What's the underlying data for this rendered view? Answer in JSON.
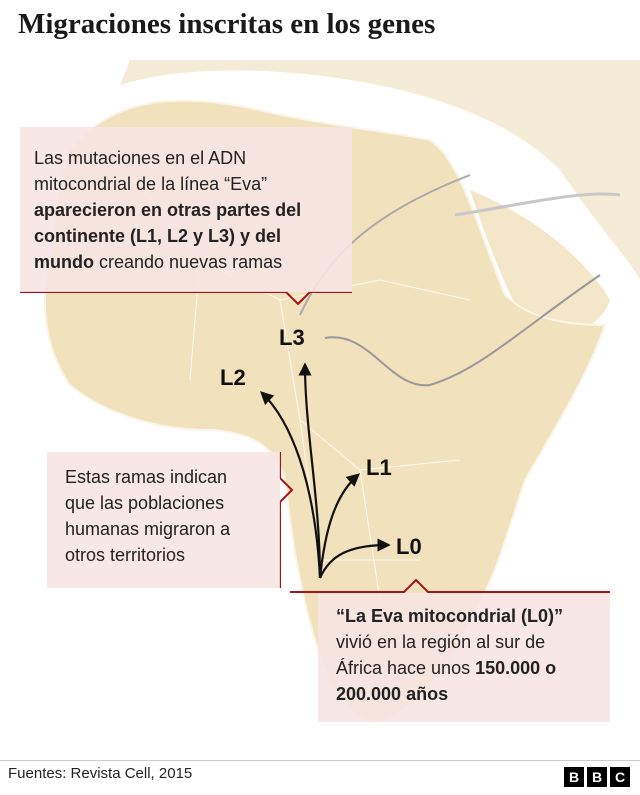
{
  "title": "Migraciones inscritas en los genes",
  "callouts": [
    {
      "segments": [
        {
          "text": "Las mutaciones en el ADN mitocondrial de la línea “Eva” ",
          "bold": false
        },
        {
          "text": "aparecieron en otras partes del continente (L1, L2 y L3) y del mundo",
          "bold": true
        },
        {
          "text": " creando nuevas ramas",
          "bold": false
        }
      ]
    },
    {
      "segments": [
        {
          "text": "Estas ramas indican que las poblaciones humanas migraron a otros territorios",
          "bold": false
        }
      ]
    },
    {
      "segments": [
        {
          "text": "“La Eva mitocondrial (L0)”",
          "bold": true
        },
        {
          "text": " vivió en la región al sur de África hace unos ",
          "bold": false
        },
        {
          "text": "150.000 o 200.000 años",
          "bold": true
        }
      ]
    }
  ],
  "lineages": [
    "L0",
    "L1",
    "L2",
    "L3"
  ],
  "source": "Fuentes: Revista Cell, 2015",
  "logo": [
    "B",
    "B",
    "C"
  ]
}
